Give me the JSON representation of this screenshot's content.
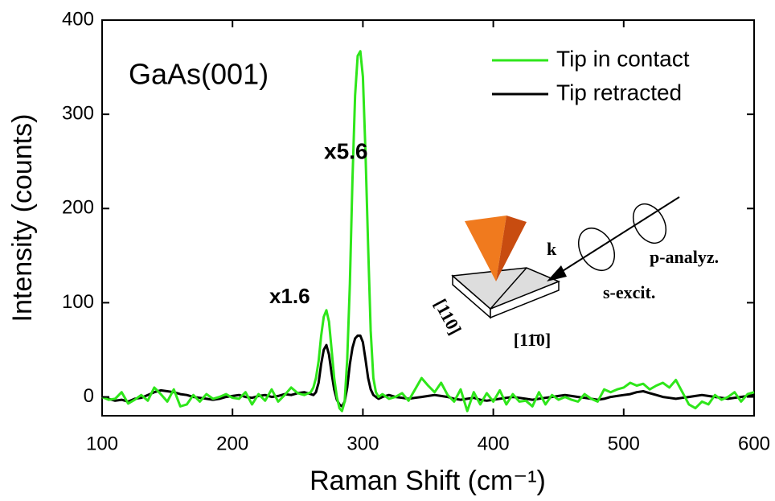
{
  "chart_data": {
    "type": "line",
    "x_label": "Raman Shift (cm⁻¹)",
    "y_label": "Intensity (counts)",
    "x": [
      100,
      105,
      110,
      115,
      120,
      125,
      130,
      135,
      140,
      145,
      150,
      155,
      160,
      165,
      170,
      175,
      180,
      185,
      190,
      195,
      200,
      205,
      210,
      215,
      220,
      225,
      230,
      235,
      240,
      245,
      250,
      255,
      260,
      262,
      264,
      266,
      268,
      270,
      272,
      274,
      276,
      278,
      280,
      282,
      284,
      286,
      288,
      290,
      292,
      294,
      296,
      298,
      300,
      302,
      304,
      306,
      308,
      310,
      312,
      315,
      320,
      325,
      330,
      335,
      340,
      345,
      350,
      355,
      360,
      365,
      370,
      375,
      380,
      385,
      390,
      395,
      400,
      405,
      410,
      415,
      420,
      425,
      430,
      435,
      440,
      445,
      450,
      455,
      460,
      465,
      470,
      475,
      480,
      485,
      490,
      495,
      500,
      505,
      510,
      515,
      520,
      525,
      530,
      535,
      540,
      545,
      550,
      555,
      560,
      565,
      570,
      575,
      580,
      585,
      590,
      595,
      600
    ],
    "series": [
      {
        "name": "Tip in contact",
        "color": "#2ee61a",
        "values": [
          0,
          -3,
          -2,
          5,
          -7,
          -3,
          2,
          -4,
          10,
          3,
          -5,
          8,
          -10,
          -8,
          2,
          -5,
          3,
          -2,
          0,
          3,
          -1,
          -2,
          5,
          -8,
          3,
          -4,
          8,
          -5,
          2,
          10,
          4,
          2,
          5,
          10,
          20,
          38,
          65,
          85,
          92,
          80,
          50,
          20,
          0,
          -12,
          -15,
          -5,
          40,
          120,
          230,
          320,
          362,
          367,
          340,
          260,
          160,
          70,
          20,
          5,
          0,
          3,
          -2,
          0,
          4,
          -4,
          8,
          20,
          12,
          5,
          15,
          2,
          -5,
          8,
          -15,
          5,
          -8,
          4,
          -5,
          7,
          -8,
          3,
          -5,
          -4,
          -10,
          5,
          -8,
          2,
          -3,
          0,
          -3,
          -5,
          3,
          -2,
          -5,
          8,
          5,
          8,
          10,
          15,
          12,
          14,
          8,
          12,
          15,
          10,
          18,
          5,
          -8,
          -12,
          -5,
          -8,
          2,
          -3,
          0,
          5,
          -5,
          3,
          5
        ]
      },
      {
        "name": "Tip retracted",
        "color": "#000000",
        "values": [
          0,
          -2,
          -4,
          -3,
          -5,
          -2,
          -1,
          2,
          5,
          7,
          6,
          5,
          3,
          2,
          0,
          -1,
          -2,
          -3,
          -2,
          0,
          1,
          2,
          0,
          -1,
          1,
          2,
          0,
          1,
          3,
          2,
          4,
          5,
          3,
          2,
          5,
          15,
          35,
          50,
          55,
          45,
          25,
          8,
          -3,
          -8,
          -10,
          -5,
          10,
          35,
          52,
          62,
          65,
          65,
          58,
          40,
          20,
          8,
          2,
          0,
          -2,
          0,
          2,
          0,
          -1,
          -2,
          -1,
          0,
          1,
          2,
          1,
          0,
          -2,
          -3,
          -2,
          -1,
          -3,
          -4,
          -3,
          -2,
          -1,
          0,
          -1,
          -2,
          -3,
          -2,
          -1,
          0,
          1,
          2,
          1,
          0,
          -1,
          -2,
          -3,
          -2,
          0,
          1,
          2,
          3,
          5,
          6,
          4,
          2,
          0,
          -1,
          -2,
          -1,
          0,
          1,
          2,
          1,
          0,
          -1,
          -2,
          -1,
          0,
          1,
          2
        ]
      }
    ],
    "xlim": [
      100,
      600
    ],
    "xticks": [
      100,
      200,
      300,
      400,
      500,
      600
    ],
    "ylim": [
      -20,
      400
    ],
    "yticks": [
      0,
      100,
      200,
      300,
      400
    ],
    "legend": "upper right",
    "annotations": [
      "GaAs(001)",
      "x1.6",
      "x5.6",
      "k",
      "p-analyz.",
      "s-excit.",
      "[110]",
      "[11̄0]"
    ]
  }
}
